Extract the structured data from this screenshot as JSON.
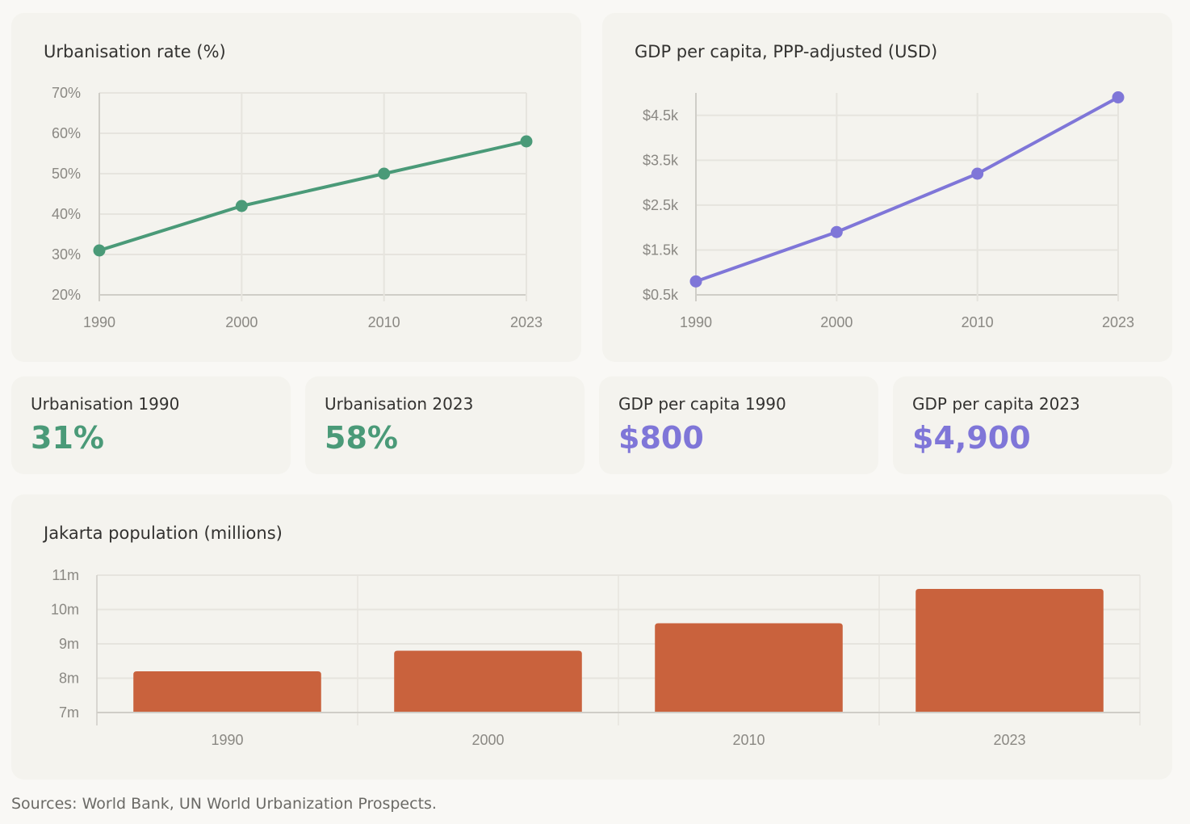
{
  "colors": {
    "urbanisation": "#4a9a78",
    "gdp": "#7f76d8",
    "population": "#c9623d",
    "grid": "#e6e4de",
    "axis": "#cfcdc7"
  },
  "chart_data": [
    {
      "type": "line",
      "title": "Urbanisation rate (%)",
      "x": [
        "1990",
        "2000",
        "2010",
        "2023"
      ],
      "series": [
        {
          "values": [
            31,
            42,
            50,
            58
          ]
        }
      ],
      "ylim": [
        20,
        70
      ],
      "yticks": [
        20,
        30,
        40,
        50,
        60,
        70
      ],
      "ytick_labels": [
        "20%",
        "30%",
        "40%",
        "50%",
        "60%",
        "70%"
      ],
      "grid": true
    },
    {
      "type": "line",
      "title": "GDP per capita, PPP-adjusted (USD)",
      "x": [
        "1990",
        "2000",
        "2010",
        "2023"
      ],
      "series": [
        {
          "values": [
            800,
            1900,
            3200,
            4900
          ]
        }
      ],
      "ylim": [
        500,
        5000
      ],
      "yticks": [
        500,
        1500,
        2500,
        3500,
        4500
      ],
      "ytick_labels": [
        "$0.5k",
        "$1.5k",
        "$2.5k",
        "$3.5k",
        "$4.5k"
      ],
      "grid": true
    },
    {
      "type": "bar",
      "title": "Jakarta population (millions)",
      "categories": [
        "1990",
        "2000",
        "2010",
        "2023"
      ],
      "values": [
        8.2,
        8.8,
        9.6,
        10.6
      ],
      "ylim": [
        7,
        11
      ],
      "yticks": [
        7,
        8,
        9,
        10,
        11
      ],
      "ytick_labels": [
        "7m",
        "8m",
        "9m",
        "10m",
        "11m"
      ],
      "grid": true
    }
  ],
  "kpis": [
    {
      "label": "Urbanisation 1990",
      "value": "31%",
      "color": "#4a9a78"
    },
    {
      "label": "Urbanisation 2023",
      "value": "58%",
      "color": "#4a9a78"
    },
    {
      "label": "GDP per capita 1990",
      "value": "$800",
      "color": "#7f76d8"
    },
    {
      "label": "GDP per capita 2023",
      "value": "$4,900",
      "color": "#7f76d8"
    }
  ],
  "source": "Sources: World Bank, UN World Urbanization Prospects."
}
